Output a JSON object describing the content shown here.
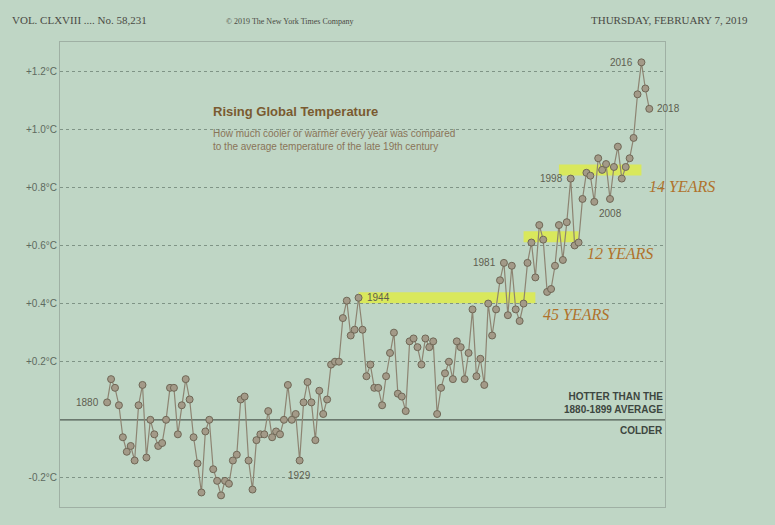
{
  "masthead": {
    "left": "VOL. CLXVIII .... No. 58,231",
    "center": "© 2019 The New York Times Company",
    "right": "THURSDAY, FEBRUARY 7, 2019"
  },
  "chart_data": {
    "type": "line",
    "title": "Rising Global Temperature",
    "subtitle": "How much cooler or warmer every year was compared to the average temperature of the late 19th century",
    "x": [
      1880,
      1881,
      1882,
      1883,
      1884,
      1885,
      1886,
      1887,
      1888,
      1889,
      1890,
      1891,
      1892,
      1893,
      1894,
      1895,
      1896,
      1897,
      1898,
      1899,
      1900,
      1901,
      1902,
      1903,
      1904,
      1905,
      1906,
      1907,
      1908,
      1909,
      1910,
      1911,
      1912,
      1913,
      1914,
      1915,
      1916,
      1917,
      1918,
      1919,
      1920,
      1921,
      1922,
      1923,
      1924,
      1925,
      1926,
      1927,
      1928,
      1929,
      1930,
      1931,
      1932,
      1933,
      1934,
      1935,
      1936,
      1937,
      1938,
      1939,
      1940,
      1941,
      1942,
      1943,
      1944,
      1945,
      1946,
      1947,
      1948,
      1949,
      1950,
      1951,
      1952,
      1953,
      1954,
      1955,
      1956,
      1957,
      1958,
      1959,
      1960,
      1961,
      1962,
      1963,
      1964,
      1965,
      1966,
      1967,
      1968,
      1969,
      1970,
      1971,
      1972,
      1973,
      1974,
      1975,
      1976,
      1977,
      1978,
      1979,
      1980,
      1981,
      1982,
      1983,
      1984,
      1985,
      1986,
      1987,
      1988,
      1989,
      1990,
      1991,
      1992,
      1993,
      1994,
      1995,
      1996,
      1997,
      1998,
      1999,
      2000,
      2001,
      2002,
      2003,
      2004,
      2005,
      2006,
      2007,
      2008,
      2009,
      2010,
      2011,
      2012,
      2013,
      2014,
      2015,
      2016,
      2017,
      2018
    ],
    "values": [
      0.06,
      0.14,
      0.11,
      0.05,
      -0.06,
      -0.11,
      -0.09,
      -0.14,
      0.05,
      0.12,
      -0.13,
      0.0,
      -0.05,
      -0.09,
      -0.08,
      0.0,
      0.11,
      0.11,
      -0.05,
      0.05,
      0.14,
      0.07,
      -0.06,
      -0.15,
      -0.25,
      -0.04,
      0.0,
      -0.17,
      -0.21,
      -0.26,
      -0.21,
      -0.22,
      -0.14,
      -0.12,
      0.07,
      0.08,
      -0.14,
      -0.24,
      -0.07,
      -0.05,
      -0.05,
      0.03,
      -0.06,
      -0.04,
      -0.05,
      0.0,
      0.12,
      0.0,
      0.02,
      -0.14,
      0.06,
      0.13,
      0.06,
      -0.07,
      0.1,
      0.02,
      0.07,
      0.19,
      0.2,
      0.2,
      0.35,
      0.41,
      0.29,
      0.31,
      0.42,
      0.31,
      0.15,
      0.19,
      0.11,
      0.11,
      0.05,
      0.15,
      0.23,
      0.3,
      0.09,
      0.08,
      0.03,
      0.27,
      0.28,
      0.25,
      0.19,
      0.28,
      0.25,
      0.27,
      0.02,
      0.11,
      0.16,
      0.2,
      0.14,
      0.27,
      0.25,
      0.14,
      0.23,
      0.38,
      0.15,
      0.21,
      0.12,
      0.4,
      0.29,
      0.38,
      0.48,
      0.54,
      0.36,
      0.53,
      0.38,
      0.34,
      0.4,
      0.54,
      0.61,
      0.49,
      0.67,
      0.62,
      0.44,
      0.45,
      0.53,
      0.67,
      0.55,
      0.68,
      0.83,
      0.6,
      0.61,
      0.76,
      0.85,
      0.84,
      0.75,
      0.9,
      0.86,
      0.88,
      0.76,
      0.87,
      0.94,
      0.83,
      0.87,
      0.9,
      0.97,
      1.12,
      1.23,
      1.14,
      1.07
    ],
    "color": "#8d8472",
    "marker": "circle",
    "line_style": "solid",
    "xlim": [
      1868,
      2022
    ],
    "ylim": [
      -0.3,
      1.3
    ],
    "yticks": [
      {
        "value": -0.2,
        "label": "-0.2°C"
      },
      {
        "value": 0.2,
        "label": "+0.2°C"
      },
      {
        "value": 0.4,
        "label": "+0.4°C"
      },
      {
        "value": 0.6,
        "label": "+0.6°C"
      },
      {
        "value": 0.8,
        "label": "+0.8°C"
      },
      {
        "value": 1.0,
        "label": "+1.0°C"
      },
      {
        "value": 1.2,
        "label": "+1.2°C"
      }
    ],
    "grid": true,
    "tick_labels": "y",
    "reference_line": 0,
    "zone_labels": {
      "above": "HOTTER THAN THE 1880-1899 AVERAGE",
      "below": "COLDER"
    },
    "point_labels": [
      1880,
      1929,
      1944,
      1981,
      1998,
      2008,
      2016,
      2018
    ],
    "highlights": [
      {
        "from": 1944,
        "to": 1989,
        "value": 0.42,
        "label": "45 YEARS"
      },
      {
        "from": 1986,
        "to": 2000,
        "value": 0.63,
        "label": "12 YEARS"
      },
      {
        "from": 1995,
        "to": 2016,
        "value": 0.86,
        "label": "14 YEARS"
      }
    ],
    "highlight_color": "#e2ee3a",
    "handwriting_color": "#b0722c"
  }
}
